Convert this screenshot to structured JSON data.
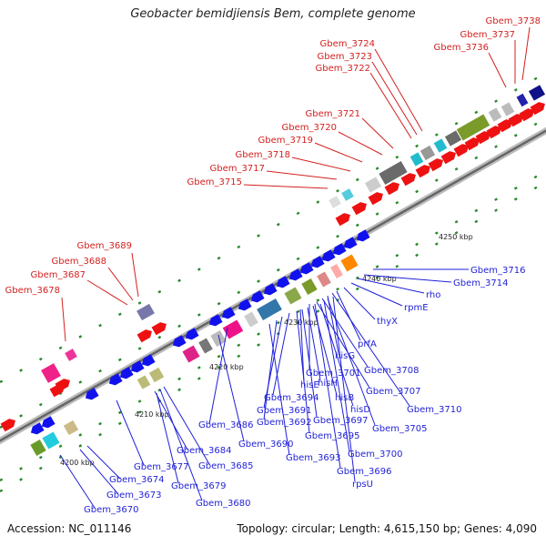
{
  "title": "Geobacter bemidjiensis Bem, complete genome",
  "footer": {
    "accession": "Accession: NC_011146",
    "summary": "Topology: circular; Length: 4,615,150 bp; Genes: 4,090"
  },
  "scale_labels": [
    "4200 kbp",
    "4210 kbp",
    "4220 kbp",
    "4230 kbp",
    "4240 kbp",
    "4250 kbp"
  ],
  "forward_genes": [
    "Gbem_3678",
    "Gbem_3687",
    "Gbem_3688",
    "Gbem_3689",
    "Gbem_3715",
    "Gbem_3717",
    "Gbem_3718",
    "Gbem_3719",
    "Gbem_3720",
    "Gbem_3721",
    "Gbem_3722",
    "Gbem_3723",
    "Gbem_3724",
    "Gbem_3736",
    "Gbem_3737",
    "Gbem_3738"
  ],
  "reverse_genes": [
    "Gbem_3716",
    "Gbem_3714",
    "rho",
    "rpmE",
    "thyX",
    "prfA",
    "hisG",
    "Gbem_3708",
    "Gbem_3701",
    "Gbem_3707",
    "hisE",
    "hisH",
    "Gbem_3710",
    "Gbem_3694",
    "hisB",
    "hisD",
    "Gbem_3691",
    "Gbem_3697",
    "Gbem_3686",
    "Gbem_3692",
    "Gbem_3705",
    "Gbem_3695",
    "Gbem_3690",
    "Gbem_3700",
    "Gbem_3693",
    "Gbem_3684",
    "Gbem_3685",
    "Gbem_3696",
    "Gbem_3677",
    "rpsU",
    "Gbem_3674",
    "Gbem_3679",
    "Gbem_3673",
    "Gbem_3680",
    "Gbem_3670"
  ],
  "colors": {
    "forward": "#ee1111",
    "reverse": "#1111ee",
    "label_forward": "#d42020",
    "label_reverse": "#1f1fd8",
    "backbone": "#888888",
    "tick": "#2a8a2a"
  }
}
